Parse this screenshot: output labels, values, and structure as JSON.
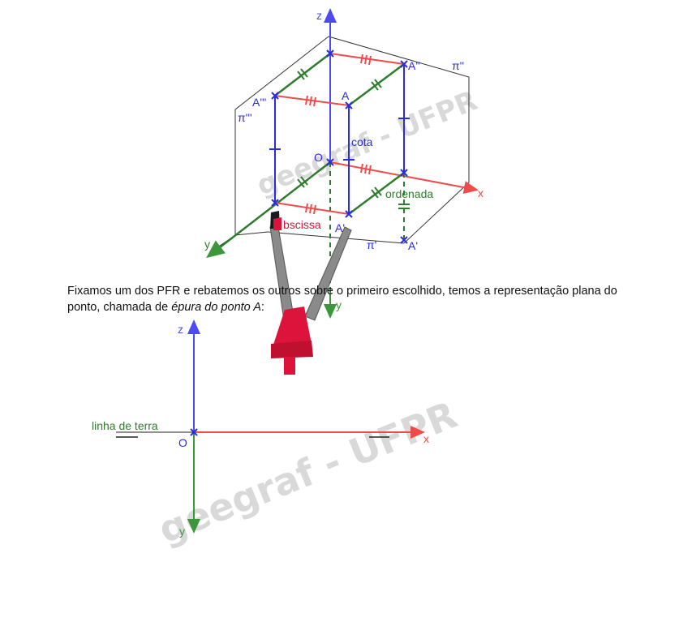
{
  "diagram_top": {
    "axis_labels": {
      "z": "z",
      "x": "x",
      "y": "y",
      "y_down": "y"
    },
    "origin": "O",
    "points": {
      "A": "A",
      "A2": "A''",
      "A3": "A'''",
      "A1": "A'",
      "A1b": "A'"
    },
    "planes": {
      "pi2": "π''",
      "pi3": "π'''",
      "pi1": "π'"
    },
    "measures": {
      "cota": "cota",
      "ordenada": "ordenada",
      "abscissa": "bscissa"
    }
  },
  "paragraph": {
    "text_before": "Fixamos um dos PFR e rebatemos os outros sobre o primeiro escolhido, temos a representação plana do ponto, chamada de ",
    "emphasis": "épura do ponto A",
    "text_after": ":"
  },
  "diagram_bottom": {
    "axis_labels": {
      "z": "z",
      "x": "x",
      "y": "y"
    },
    "origin": "O",
    "ground_line_label": "linha de terra"
  },
  "watermark": "geegraf - UFPR",
  "colors": {
    "z_axis": "#4b4bf0",
    "x_axis": "#f04b4b",
    "y_axis": "#3c963c",
    "projections": "#2b2be0",
    "cursor_tip": "#dc143c"
  }
}
